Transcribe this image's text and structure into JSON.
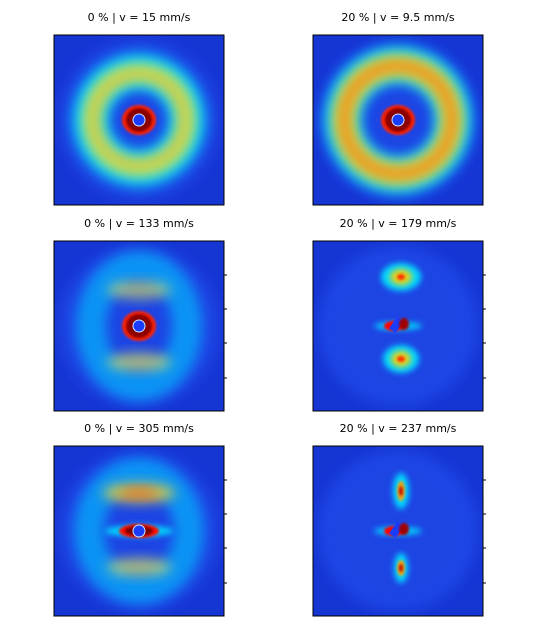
{
  "panels": [
    {
      "title": "0 % | v = 15 mm/s"
    },
    {
      "title": "20 % | v = 9.5 mm/s"
    },
    {
      "title": "0 % | v = 133 mm/s"
    },
    {
      "title": "20 % | v = 179 mm/s"
    },
    {
      "title": "0 % | v = 305 mm/s"
    },
    {
      "title": "20 % | v = 237 mm/s"
    }
  ]
}
